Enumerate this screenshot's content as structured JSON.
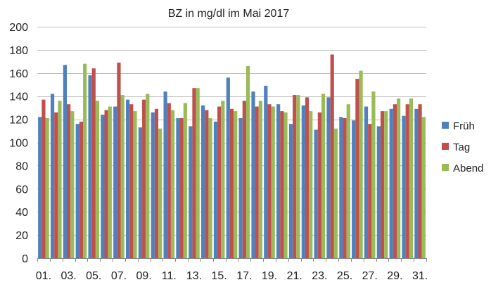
{
  "chart_data": {
    "type": "bar",
    "title": "BZ in mg/dl im Mai 2017",
    "xlabel": "",
    "ylabel": "",
    "ylim": [
      0,
      200
    ],
    "yticks": [
      0,
      20,
      40,
      60,
      80,
      100,
      120,
      140,
      160,
      180,
      200
    ],
    "grid": "horizontal",
    "legend_position": "right",
    "categories": [
      "01.",
      "02.",
      "03.",
      "04.",
      "05.",
      "06.",
      "07.",
      "08.",
      "09.",
      "10.",
      "11.",
      "12.",
      "13.",
      "14.",
      "15.",
      "16.",
      "17.",
      "18.",
      "19.",
      "20.",
      "21.",
      "22.",
      "23.",
      "24.",
      "25.",
      "26.",
      "27.",
      "28.",
      "29.",
      "30.",
      "31."
    ],
    "visible_tick_labels": [
      "01.",
      "03.",
      "05.",
      "07.",
      "09.",
      "11.",
      "13.",
      "15.",
      "17.",
      "19.",
      "21.",
      "23.",
      "25.",
      "27.",
      "29.",
      "31."
    ],
    "series": [
      {
        "name": "Früh",
        "color": "#4F81BD",
        "values": [
          122,
          142,
          167,
          116,
          158,
          124,
          131,
          137,
          113,
          126,
          144,
          121,
          114,
          132,
          118,
          156,
          121,
          144,
          149,
          133,
          116,
          132,
          111,
          139,
          122,
          119,
          131,
          114,
          129,
          123,
          129
        ]
      },
      {
        "name": "Tag",
        "color": "#C0504D",
        "values": [
          137,
          126,
          133,
          118,
          164,
          128,
          169,
          133,
          137,
          129,
          134,
          121,
          147,
          128,
          131,
          129,
          136,
          131,
          133,
          127,
          141,
          139,
          126,
          176,
          121,
          155,
          116,
          127,
          133,
          133,
          133
        ]
      },
      {
        "name": "Abend",
        "color": "#9BBB59",
        "values": [
          121,
          136,
          127,
          168,
          136,
          131,
          141,
          127,
          142,
          112,
          128,
          134,
          147,
          121,
          136,
          127,
          166,
          136,
          131,
          126,
          141,
          127,
          142,
          112,
          133,
          162,
          144,
          127,
          138,
          138,
          122
        ]
      }
    ]
  }
}
